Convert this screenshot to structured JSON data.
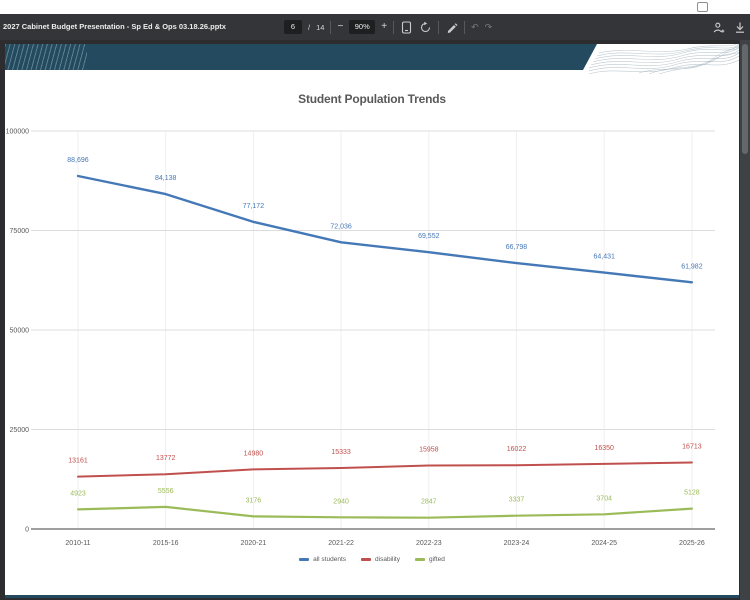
{
  "toolbar": {
    "document_title": "2027 Cabinet Budget Presentation - Sp Ed & Ops 03.18.26.pptx",
    "page_current": "6",
    "page_divider": "/",
    "page_total": "14",
    "zoom_out_label": "−",
    "zoom_value": "90%",
    "zoom_in_label": "+"
  },
  "chart_data": {
    "type": "line",
    "title": "Student Population Trends",
    "categories": [
      "2010-11",
      "2015-16",
      "2020-21",
      "2021-22",
      "2022-23",
      "2023-24",
      "2024-25",
      "2025-26"
    ],
    "series": [
      {
        "name": "all students",
        "color": "#4478b6",
        "values": [
          88696,
          84138,
          77172,
          72036,
          69552,
          66798,
          64431,
          61982
        ],
        "labels": [
          "88,696",
          "84,138",
          "77,172",
          "72,036",
          "69,552",
          "66,798",
          "64,431",
          "61,982"
        ]
      },
      {
        "name": "disability",
        "color": "#c0504d",
        "values": [
          13161,
          13772,
          14980,
          15333,
          15958,
          16022,
          16350,
          16713
        ],
        "labels": [
          "13161",
          "13772",
          "14980",
          "15333",
          "15958",
          "16022",
          "16350",
          "16713"
        ]
      },
      {
        "name": "gifted",
        "color": "#9bbb59",
        "values": [
          4923,
          5556,
          3176,
          2940,
          2847,
          3337,
          3704,
          5128
        ],
        "labels": [
          "4923",
          "5556",
          "3176",
          "2940",
          "2847",
          "3337",
          "3704",
          "5128"
        ]
      }
    ],
    "y_ticks": [
      0,
      25000,
      50000,
      75000,
      100000
    ],
    "y_tick_labels": [
      "0",
      "25000",
      "50000",
      "75000",
      "100000"
    ],
    "ylim": [
      0,
      100000
    ],
    "grid": true,
    "legend_position": "bottom"
  }
}
